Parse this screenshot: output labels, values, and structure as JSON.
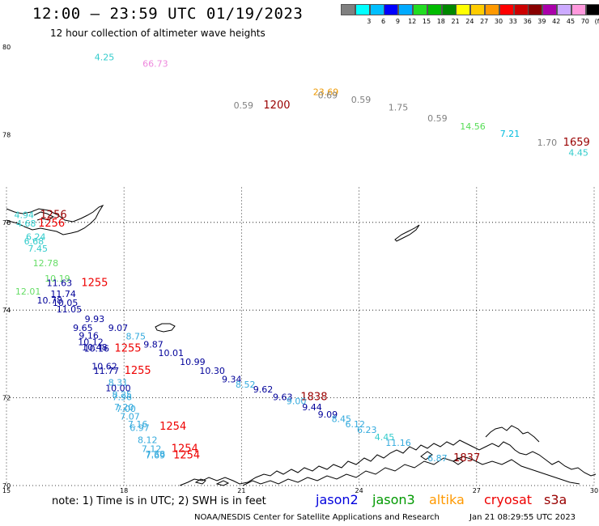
{
  "header": {
    "title": "12:00 – 23:59 UTC 01/19/2023",
    "subtitle": "12 hour collection of altimeter wave heights"
  },
  "legend": {
    "items": [
      {
        "label": "",
        "color": "#808080"
      },
      {
        "label": "3",
        "color": "#00ffff"
      },
      {
        "label": "6",
        "color": "#00bfff"
      },
      {
        "label": "9",
        "color": "#0000ff"
      },
      {
        "label": "12",
        "color": "#00aaff"
      },
      {
        "label": "15",
        "color": "#22dd22"
      },
      {
        "label": "18",
        "color": "#00bb00"
      },
      {
        "label": "21",
        "color": "#008800"
      },
      {
        "label": "24",
        "color": "#ffff00"
      },
      {
        "label": "27",
        "color": "#ffcc00"
      },
      {
        "label": "30",
        "color": "#ff9900"
      },
      {
        "label": "33",
        "color": "#ff0000"
      },
      {
        "label": "36",
        "color": "#cc0000"
      },
      {
        "label": "39",
        "color": "#880000"
      },
      {
        "label": "42",
        "color": "#aa00aa"
      },
      {
        "label": "45",
        "color": "#ccaaff"
      },
      {
        "label": "70",
        "color": "#ff99dd"
      },
      {
        "label": "(ft)",
        "color": "#000000"
      }
    ]
  },
  "axes": {
    "x_ticks": [
      "15",
      "18",
      "21",
      "24",
      "27",
      "30"
    ],
    "y_ticks": [
      "80",
      "78",
      "76",
      "74",
      "72",
      "70"
    ]
  },
  "chart_data": {
    "type": "scatter",
    "xlabel": "",
    "ylabel": "",
    "xlim": [
      15,
      30
    ],
    "ylim": [
      70,
      80
    ],
    "labels": [
      {
        "text": "4.25",
        "x": 17.5,
        "y": 79.7,
        "color": "#33cccc",
        "size": 11
      },
      {
        "text": "66.73",
        "x": 18.8,
        "y": 79.55,
        "color": "#ee88dd",
        "size": 11
      },
      {
        "text": "23.69",
        "x": 23.15,
        "y": 78.9,
        "color": "#ee9900",
        "size": 11
      },
      {
        "text": "0.69",
        "x": 23.2,
        "y": 78.83,
        "color": "#808080",
        "size": 11
      },
      {
        "text": "0.59",
        "x": 21.05,
        "y": 78.6,
        "color": "#808080",
        "size": 11
      },
      {
        "text": "1200",
        "x": 21.9,
        "y": 78.6,
        "color": "#990000",
        "size": 13
      },
      {
        "text": "0.59",
        "x": 24.05,
        "y": 78.73,
        "color": "#808080",
        "size": 11
      },
      {
        "text": "1.75",
        "x": 25.0,
        "y": 78.55,
        "color": "#808080",
        "size": 11
      },
      {
        "text": "0.59",
        "x": 26.0,
        "y": 78.3,
        "color": "#808080",
        "size": 11
      },
      {
        "text": "14.56",
        "x": 26.9,
        "y": 78.12,
        "color": "#55dd55",
        "size": 11
      },
      {
        "text": "7.21",
        "x": 27.85,
        "y": 77.95,
        "color": "#00bbdd",
        "size": 11
      },
      {
        "text": "1.70",
        "x": 28.8,
        "y": 77.75,
        "color": "#808080",
        "size": 11
      },
      {
        "text": "1659",
        "x": 29.55,
        "y": 77.75,
        "color": "#990000",
        "size": 13
      },
      {
        "text": "4.45",
        "x": 29.6,
        "y": 77.52,
        "color": "#33cccc",
        "size": 11
      },
      {
        "text": "1256",
        "x": 16.2,
        "y": 76.1,
        "color": "#990000",
        "size": 13
      },
      {
        "text": "1256",
        "x": 16.15,
        "y": 75.9,
        "color": "#ee0000",
        "size": 13
      },
      {
        "text": "4.94",
        "x": 15.45,
        "y": 76.1,
        "color": "#33cccc",
        "size": 11
      },
      {
        "text": "4.68",
        "x": 15.5,
        "y": 75.9,
        "color": "#33cccc",
        "size": 11
      },
      {
        "text": "6.24",
        "x": 15.75,
        "y": 75.6,
        "color": "#33cccc",
        "size": 11
      },
      {
        "text": "6.68",
        "x": 15.7,
        "y": 75.5,
        "color": "#33cccc",
        "size": 11
      },
      {
        "text": "7.45",
        "x": 15.8,
        "y": 75.33,
        "color": "#33cccc",
        "size": 11
      },
      {
        "text": "12.78",
        "x": 16.0,
        "y": 75.0,
        "color": "#66dd66",
        "size": 11
      },
      {
        "text": "10.19",
        "x": 16.3,
        "y": 74.65,
        "color": "#66dd66",
        "size": 11
      },
      {
        "text": "11.63",
        "x": 16.35,
        "y": 74.55,
        "color": "#000099",
        "size": 11
      },
      {
        "text": "1255",
        "x": 17.25,
        "y": 74.55,
        "color": "#ee0000",
        "size": 13
      },
      {
        "text": "12.01",
        "x": 15.55,
        "y": 74.35,
        "color": "#66dd66",
        "size": 11
      },
      {
        "text": "11.74",
        "x": 16.45,
        "y": 74.3,
        "color": "#000099",
        "size": 11
      },
      {
        "text": "10.78",
        "x": 16.1,
        "y": 74.15,
        "color": "#000099",
        "size": 11
      },
      {
        "text": "10.05",
        "x": 16.5,
        "y": 74.1,
        "color": "#000099",
        "size": 11
      },
      {
        "text": "11.05",
        "x": 16.6,
        "y": 73.95,
        "color": "#000099",
        "size": 11
      },
      {
        "text": "9.93",
        "x": 17.25,
        "y": 73.73,
        "color": "#000099",
        "size": 11
      },
      {
        "text": "9.65",
        "x": 16.95,
        "y": 73.52,
        "color": "#000099",
        "size": 11
      },
      {
        "text": "9.07",
        "x": 17.85,
        "y": 73.52,
        "color": "#000099",
        "size": 11
      },
      {
        "text": "9.16",
        "x": 17.1,
        "y": 73.35,
        "color": "#000099",
        "size": 11
      },
      {
        "text": "8.75",
        "x": 18.3,
        "y": 73.33,
        "color": "#33aadd",
        "size": 11
      },
      {
        "text": "10.12",
        "x": 17.15,
        "y": 73.2,
        "color": "#000099",
        "size": 11
      },
      {
        "text": "9.87",
        "x": 18.75,
        "y": 73.15,
        "color": "#000099",
        "size": 11
      },
      {
        "text": "10.48",
        "x": 17.25,
        "y": 73.08,
        "color": "#000099",
        "size": 11
      },
      {
        "text": "10.16",
        "x": 17.3,
        "y": 73.05,
        "color": "#000099",
        "size": 11
      },
      {
        "text": "1255",
        "x": 18.1,
        "y": 73.05,
        "color": "#ee0000",
        "size": 13
      },
      {
        "text": "10.01",
        "x": 19.2,
        "y": 72.95,
        "color": "#000099",
        "size": 11
      },
      {
        "text": "10.99",
        "x": 19.75,
        "y": 72.75,
        "color": "#000099",
        "size": 11
      },
      {
        "text": "10.62",
        "x": 17.5,
        "y": 72.65,
        "color": "#000099",
        "size": 11
      },
      {
        "text": "11.77",
        "x": 17.55,
        "y": 72.55,
        "color": "#000099",
        "size": 11
      },
      {
        "text": "1255",
        "x": 18.35,
        "y": 72.55,
        "color": "#ee0000",
        "size": 13
      },
      {
        "text": "10.30",
        "x": 20.25,
        "y": 72.55,
        "color": "#000099",
        "size": 11
      },
      {
        "text": "9.34",
        "x": 20.75,
        "y": 72.35,
        "color": "#000099",
        "size": 11
      },
      {
        "text": "8.31",
        "x": 17.85,
        "y": 72.28,
        "color": "#33aadd",
        "size": 11
      },
      {
        "text": "8.52",
        "x": 21.1,
        "y": 72.23,
        "color": "#33aadd",
        "size": 11
      },
      {
        "text": "10.00",
        "x": 17.85,
        "y": 72.15,
        "color": "#000099",
        "size": 11
      },
      {
        "text": "9.62",
        "x": 21.55,
        "y": 72.12,
        "color": "#000099",
        "size": 11
      },
      {
        "text": "8.25",
        "x": 17.95,
        "y": 72.0,
        "color": "#33aadd",
        "size": 11
      },
      {
        "text": "7.96",
        "x": 17.95,
        "y": 71.95,
        "color": "#33aadd",
        "size": 11
      },
      {
        "text": "9.63",
        "x": 22.05,
        "y": 71.95,
        "color": "#000099",
        "size": 11
      },
      {
        "text": "1838",
        "x": 22.85,
        "y": 71.95,
        "color": "#990000",
        "size": 13
      },
      {
        "text": "9.00",
        "x": 22.4,
        "y": 71.85,
        "color": "#33aadd",
        "size": 11
      },
      {
        "text": "7.20",
        "x": 18.0,
        "y": 71.72,
        "color": "#33aadd",
        "size": 11
      },
      {
        "text": "7.00",
        "x": 18.05,
        "y": 71.68,
        "color": "#33aadd",
        "size": 11
      },
      {
        "text": "9.44",
        "x": 22.8,
        "y": 71.72,
        "color": "#000099",
        "size": 11
      },
      {
        "text": "9.09",
        "x": 23.2,
        "y": 71.55,
        "color": "#000099",
        "size": 11
      },
      {
        "text": "7.07",
        "x": 18.15,
        "y": 71.5,
        "color": "#33aadd",
        "size": 11
      },
      {
        "text": "8.45",
        "x": 23.55,
        "y": 71.45,
        "color": "#33aadd",
        "size": 11
      },
      {
        "text": "7.16",
        "x": 18.35,
        "y": 71.33,
        "color": "#33aadd",
        "size": 11
      },
      {
        "text": "6.12",
        "x": 23.9,
        "y": 71.33,
        "color": "#33aadd",
        "size": 11
      },
      {
        "text": "6.97",
        "x": 18.4,
        "y": 71.25,
        "color": "#33aadd",
        "size": 11
      },
      {
        "text": "1254",
        "x": 19.25,
        "y": 71.27,
        "color": "#ee0000",
        "size": 13
      },
      {
        "text": "6.23",
        "x": 24.2,
        "y": 71.2,
        "color": "#33aadd",
        "size": 11
      },
      {
        "text": "4.45",
        "x": 24.65,
        "y": 71.03,
        "color": "#33cccc",
        "size": 11
      },
      {
        "text": "8.12",
        "x": 18.6,
        "y": 70.97,
        "color": "#33aadd",
        "size": 11
      },
      {
        "text": "11.16",
        "x": 25.0,
        "y": 70.9,
        "color": "#33aadd",
        "size": 11
      },
      {
        "text": "7.12",
        "x": 18.7,
        "y": 70.77,
        "color": "#33aadd",
        "size": 11
      },
      {
        "text": "1254",
        "x": 19.55,
        "y": 70.77,
        "color": "#ee0000",
        "size": 13
      },
      {
        "text": "7.58",
        "x": 18.8,
        "y": 70.65,
        "color": "#33aadd",
        "size": 11
      },
      {
        "text": "7.69",
        "x": 18.8,
        "y": 70.62,
        "color": "#33aadd",
        "size": 11
      },
      {
        "text": "1254",
        "x": 19.6,
        "y": 70.62,
        "color": "#ee0000",
        "size": 13
      },
      {
        "text": "6.87",
        "x": 26.0,
        "y": 70.55,
        "color": "#33aadd",
        "size": 11
      },
      {
        "text": "1837",
        "x": 26.75,
        "y": 70.55,
        "color": "#990000",
        "size": 13
      }
    ]
  },
  "footer": {
    "note": "note:  1) Time is in UTC;  2) SWH is in feet",
    "satellites": [
      {
        "name": "jason2",
        "color": "#0000dd"
      },
      {
        "name": "jason3",
        "color": "#009900"
      },
      {
        "name": "altika",
        "color": "#ff9900"
      },
      {
        "name": "cryosat",
        "color": "#ee0000"
      },
      {
        "name": "s3a",
        "color": "#990000"
      }
    ],
    "credit": "NOAA/NESDIS Center for Satellite Applications and Research",
    "timestamp": "Jan 21 08:29:55 UTC 2023"
  }
}
